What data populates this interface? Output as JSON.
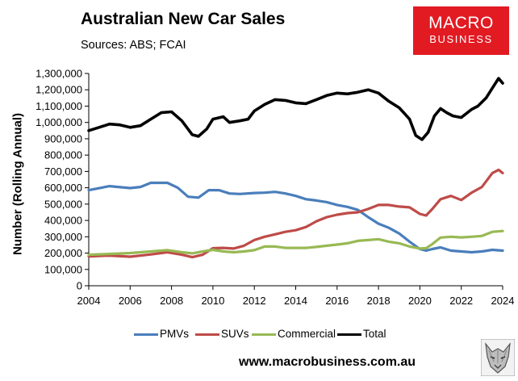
{
  "header": {
    "title": "Australian New Car Sales",
    "sources": "Sources: ABS; FCAI"
  },
  "logo": {
    "line1": "MACRO",
    "line2": "BUSINESS",
    "color": "#e21a22"
  },
  "footer": {
    "url": "www.macrobusiness.com.au"
  },
  "chart_data": {
    "type": "line",
    "ylabel": "Number (Rolling Annual)",
    "xlim": [
      2004,
      2024
    ],
    "ylim": [
      0,
      1300000
    ],
    "x_ticks": [
      2004,
      2006,
      2008,
      2010,
      2012,
      2014,
      2016,
      2018,
      2020,
      2022,
      2024
    ],
    "x_tick_labels": [
      "2004",
      "2006",
      "2008",
      "2010",
      "2012",
      "2014",
      "2016",
      "2018",
      "2020",
      "2022",
      "2024"
    ],
    "y_ticks": [
      0,
      100000,
      200000,
      300000,
      400000,
      500000,
      600000,
      700000,
      800000,
      900000,
      1000000,
      1100000,
      1200000,
      1300000
    ],
    "y_tick_labels": [
      "0",
      "100,000",
      "200,000",
      "300,000",
      "400,000",
      "500,000",
      "600,000",
      "700,000",
      "800,000",
      "900,000",
      "1,000,000",
      "1,100,000",
      "1,200,000",
      "1,300,000"
    ],
    "grid": false,
    "legend_position": "bottom",
    "series": [
      {
        "name": "PMVs",
        "color": "#4a7ebb",
        "points": [
          [
            2004,
            585000
          ],
          [
            2005,
            610000
          ],
          [
            2006,
            598000
          ],
          [
            2006.5,
            605000
          ],
          [
            2007,
            630000
          ],
          [
            2007.8,
            630000
          ],
          [
            2008.3,
            600000
          ],
          [
            2008.8,
            545000
          ],
          [
            2009.3,
            540000
          ],
          [
            2009.8,
            585000
          ],
          [
            2010.3,
            585000
          ],
          [
            2010.8,
            565000
          ],
          [
            2011.3,
            562000
          ],
          [
            2012,
            568000
          ],
          [
            2012.5,
            570000
          ],
          [
            2013,
            575000
          ],
          [
            2013.5,
            565000
          ],
          [
            2014,
            550000
          ],
          [
            2014.5,
            530000
          ],
          [
            2015,
            522000
          ],
          [
            2015.5,
            512000
          ],
          [
            2016,
            495000
          ],
          [
            2016.5,
            483000
          ],
          [
            2017,
            465000
          ],
          [
            2017.5,
            420000
          ],
          [
            2018,
            380000
          ],
          [
            2018.5,
            355000
          ],
          [
            2019,
            320000
          ],
          [
            2019.5,
            270000
          ],
          [
            2020,
            225000
          ],
          [
            2020.3,
            215000
          ],
          [
            2020.6,
            225000
          ],
          [
            2021,
            235000
          ],
          [
            2021.5,
            215000
          ],
          [
            2022,
            210000
          ],
          [
            2022.5,
            205000
          ],
          [
            2023,
            210000
          ],
          [
            2023.5,
            220000
          ],
          [
            2024,
            215000
          ]
        ]
      },
      {
        "name": "SUVs",
        "color": "#be4b48",
        "points": [
          [
            2004,
            180000
          ],
          [
            2005,
            185000
          ],
          [
            2006,
            178000
          ],
          [
            2007,
            192000
          ],
          [
            2007.8,
            205000
          ],
          [
            2008.5,
            190000
          ],
          [
            2009,
            175000
          ],
          [
            2009.5,
            190000
          ],
          [
            2010,
            230000
          ],
          [
            2010.5,
            232000
          ],
          [
            2011,
            228000
          ],
          [
            2011.5,
            245000
          ],
          [
            2012,
            280000
          ],
          [
            2012.5,
            300000
          ],
          [
            2013,
            315000
          ],
          [
            2013.5,
            330000
          ],
          [
            2014,
            340000
          ],
          [
            2014.5,
            360000
          ],
          [
            2015,
            395000
          ],
          [
            2015.5,
            420000
          ],
          [
            2016,
            435000
          ],
          [
            2016.5,
            445000
          ],
          [
            2017,
            450000
          ],
          [
            2017.5,
            470000
          ],
          [
            2018,
            495000
          ],
          [
            2018.5,
            495000
          ],
          [
            2019,
            485000
          ],
          [
            2019.5,
            480000
          ],
          [
            2020,
            440000
          ],
          [
            2020.3,
            430000
          ],
          [
            2020.6,
            470000
          ],
          [
            2021,
            530000
          ],
          [
            2021.5,
            550000
          ],
          [
            2022,
            525000
          ],
          [
            2022.5,
            570000
          ],
          [
            2023,
            605000
          ],
          [
            2023.5,
            690000
          ],
          [
            2023.8,
            710000
          ],
          [
            2024,
            690000
          ]
        ]
      },
      {
        "name": "Commercial",
        "color": "#98b954",
        "points": [
          [
            2004,
            190000
          ],
          [
            2005,
            195000
          ],
          [
            2006,
            200000
          ],
          [
            2007,
            210000
          ],
          [
            2007.8,
            218000
          ],
          [
            2008.5,
            205000
          ],
          [
            2009,
            198000
          ],
          [
            2009.5,
            210000
          ],
          [
            2010,
            220000
          ],
          [
            2010.5,
            210000
          ],
          [
            2011,
            205000
          ],
          [
            2011.5,
            210000
          ],
          [
            2012,
            218000
          ],
          [
            2012.5,
            240000
          ],
          [
            2013,
            240000
          ],
          [
            2013.5,
            232000
          ],
          [
            2014,
            232000
          ],
          [
            2014.5,
            232000
          ],
          [
            2015,
            238000
          ],
          [
            2015.5,
            245000
          ],
          [
            2016,
            252000
          ],
          [
            2016.5,
            260000
          ],
          [
            2017,
            275000
          ],
          [
            2017.5,
            280000
          ],
          [
            2018,
            285000
          ],
          [
            2018.5,
            270000
          ],
          [
            2019,
            260000
          ],
          [
            2019.5,
            240000
          ],
          [
            2020,
            228000
          ],
          [
            2020.3,
            230000
          ],
          [
            2020.6,
            255000
          ],
          [
            2021,
            295000
          ],
          [
            2021.5,
            300000
          ],
          [
            2022,
            296000
          ],
          [
            2022.5,
            300000
          ],
          [
            2023,
            305000
          ],
          [
            2023.5,
            330000
          ],
          [
            2024,
            335000
          ]
        ]
      },
      {
        "name": "Total",
        "color": "#000000",
        "points": [
          [
            2004,
            950000
          ],
          [
            2004.5,
            970000
          ],
          [
            2005,
            990000
          ],
          [
            2005.5,
            985000
          ],
          [
            2006,
            970000
          ],
          [
            2006.5,
            980000
          ],
          [
            2007,
            1020000
          ],
          [
            2007.5,
            1060000
          ],
          [
            2008,
            1065000
          ],
          [
            2008.5,
            1010000
          ],
          [
            2009,
            925000
          ],
          [
            2009.3,
            915000
          ],
          [
            2009.7,
            960000
          ],
          [
            2010,
            1020000
          ],
          [
            2010.5,
            1035000
          ],
          [
            2010.8,
            1000000
          ],
          [
            2011.3,
            1010000
          ],
          [
            2011.7,
            1020000
          ],
          [
            2012,
            1070000
          ],
          [
            2012.5,
            1110000
          ],
          [
            2013,
            1140000
          ],
          [
            2013.5,
            1135000
          ],
          [
            2014,
            1120000
          ],
          [
            2014.5,
            1115000
          ],
          [
            2015,
            1140000
          ],
          [
            2015.5,
            1165000
          ],
          [
            2016,
            1180000
          ],
          [
            2016.5,
            1175000
          ],
          [
            2017,
            1185000
          ],
          [
            2017.5,
            1200000
          ],
          [
            2018,
            1180000
          ],
          [
            2018.5,
            1130000
          ],
          [
            2019,
            1090000
          ],
          [
            2019.5,
            1020000
          ],
          [
            2019.8,
            920000
          ],
          [
            2020.1,
            895000
          ],
          [
            2020.4,
            940000
          ],
          [
            2020.7,
            1040000
          ],
          [
            2021,
            1085000
          ],
          [
            2021.3,
            1060000
          ],
          [
            2021.6,
            1040000
          ],
          [
            2022,
            1030000
          ],
          [
            2022.5,
            1080000
          ],
          [
            2022.8,
            1100000
          ],
          [
            2023.2,
            1150000
          ],
          [
            2023.5,
            1210000
          ],
          [
            2023.8,
            1270000
          ],
          [
            2024,
            1240000
          ]
        ]
      }
    ]
  }
}
